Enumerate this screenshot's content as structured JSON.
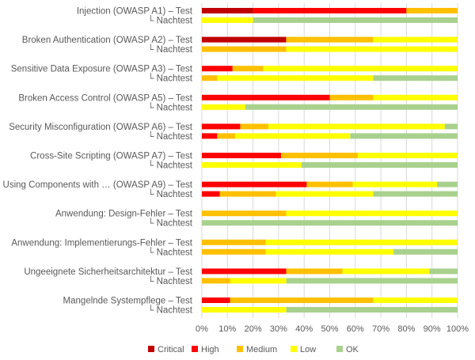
{
  "chart_data": {
    "type": "bar",
    "orientation": "horizontal",
    "stacked": true,
    "percent": true,
    "grid": true,
    "legend_position": "bottom",
    "xlim": [
      0,
      100
    ],
    "x_ticks": [
      "0%",
      "10%",
      "20%",
      "30%",
      "40%",
      "50%",
      "60%",
      "70%",
      "80%",
      "90%",
      "100%"
    ],
    "categories": [
      "Injection (OWASP A1) – Test",
      "└ Nachtest",
      "Broken Authentication (OWASP A2) – Test",
      "└ Nachtest",
      "Sensitive Data Exposure (OWASP A3) – Test",
      "└ Nachtest",
      "Broken Access Control (OWASP A5) – Test",
      "└ Nachtest",
      "Security Misconfiguration (OWASP A6) – Test",
      "└ Nachtest",
      "Cross-Site Scripting (OWASP A7) – Test",
      "└ Nachtest",
      "Using Components with … (OWASP A9) – Test",
      "└ Nachtest",
      "Anwendung: Design-Fehler – Test",
      "└ Nachtest",
      "Anwendung: Implementierungs-Fehler – Test",
      "└ Nachtest",
      "Ungeeignete Sicherheitsarchitektur – Test",
      "└ Nachtest",
      "Mangelnde Systempflege – Test",
      "└ Nachtest"
    ],
    "series": [
      {
        "name": "Critical",
        "color": "#c00000",
        "values": [
          20,
          0,
          33,
          0,
          0,
          0,
          0,
          0,
          0,
          0,
          0,
          0,
          0,
          0,
          0,
          0,
          0,
          0,
          0,
          0,
          0,
          0
        ]
      },
      {
        "name": "High",
        "color": "#ff0000",
        "values": [
          60,
          0,
          0,
          0,
          12,
          0,
          50,
          0,
          15,
          6,
          31,
          0,
          41,
          7,
          0,
          0,
          0,
          0,
          33,
          0,
          11,
          0
        ]
      },
      {
        "name": "Medium",
        "color": "#ffc000",
        "values": [
          20,
          0,
          34,
          33,
          12,
          6,
          17,
          0,
          11,
          7,
          30,
          0,
          18,
          22,
          33,
          0,
          25,
          25,
          22,
          11,
          56,
          0
        ]
      },
      {
        "name": "Low",
        "color": "#ffff00",
        "values": [
          0,
          20,
          33,
          67,
          76,
          61,
          33,
          17,
          69,
          45,
          39,
          39,
          33,
          38,
          67,
          0,
          75,
          50,
          34,
          22,
          33,
          33
        ]
      },
      {
        "name": "OK",
        "color": "#a9d18e",
        "values": [
          0,
          80,
          0,
          0,
          0,
          33,
          0,
          83,
          5,
          42,
          0,
          61,
          8,
          33,
          0,
          100,
          0,
          25,
          11,
          67,
          0,
          67
        ]
      }
    ]
  }
}
